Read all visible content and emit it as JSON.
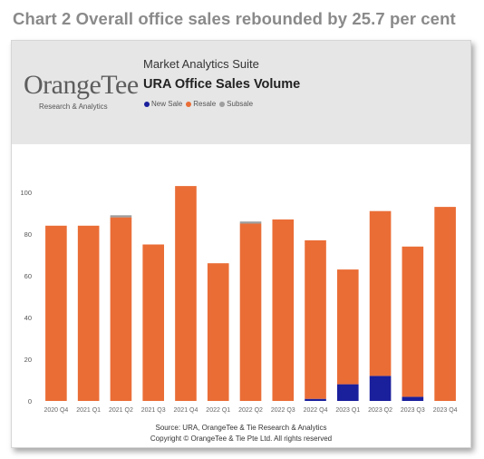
{
  "page": {
    "title": "Chart 2 Overall office sales rebounded by 25.7 per cent"
  },
  "header": {
    "logo_text": "OrangeTee",
    "logo_subtitle": "Research & Analytics",
    "suite": "Market Analytics Suite"
  },
  "footer": {
    "source": "Source: URA, OrangeTee & Tie Research & Analytics",
    "copyright": "Copyright © OrangeTee & Tie Pte Ltd. All rights reserved"
  },
  "chart_data": {
    "type": "bar",
    "stacked": true,
    "title": "URA Office Sales Volume",
    "xlabel": "",
    "ylabel": "",
    "legend_position": "top-left",
    "grid": false,
    "ylim": [
      0,
      110
    ],
    "yticks": [
      0,
      20,
      40,
      60,
      80,
      100
    ],
    "categories": [
      "2020 Q4",
      "2021 Q1",
      "2021 Q2",
      "2021 Q3",
      "2021 Q4",
      "2022 Q1",
      "2022 Q2",
      "2022 Q3",
      "2022 Q4",
      "2023 Q1",
      "2023 Q2",
      "2023 Q3",
      "2023 Q4"
    ],
    "series": [
      {
        "name": "New Sale",
        "color": "#1a1f9c",
        "values": [
          0,
          0,
          0,
          0,
          0,
          0,
          0,
          0,
          1,
          8,
          12,
          2,
          0
        ]
      },
      {
        "name": "Resale",
        "color": "#ea6d36",
        "values": [
          84,
          84,
          88,
          75,
          103,
          66,
          85,
          87,
          76,
          55,
          79,
          72,
          93
        ]
      },
      {
        "name": "Subsale",
        "color": "#9e9e9e",
        "values": [
          0,
          0,
          1,
          0,
          0,
          0,
          1,
          0,
          0,
          0,
          0,
          0,
          0
        ]
      }
    ]
  }
}
